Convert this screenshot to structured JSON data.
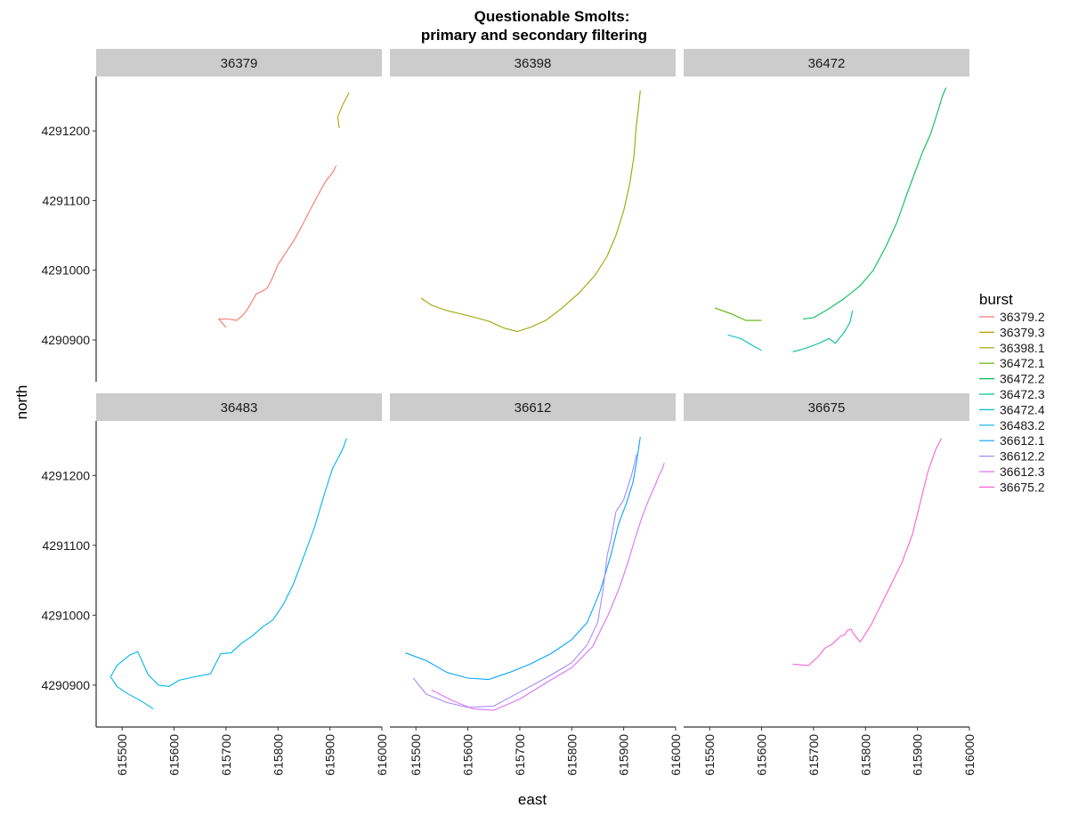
{
  "chart_data": {
    "type": "line",
    "title_lines": [
      "Questionable Smolts:",
      "primary and secondary filtering"
    ],
    "xlabel": "east",
    "ylabel": "north",
    "xlim": [
      615450,
      616000
    ],
    "ylim": [
      4290840,
      4291278
    ],
    "x_ticks": [
      615500,
      615600,
      615700,
      615800,
      615900,
      616000
    ],
    "y_ticks": [
      4290900,
      4291000,
      4291100,
      4291200
    ],
    "grid": false,
    "facet_by": "tag",
    "legend": {
      "title": "burst",
      "position": "right"
    },
    "panels": [
      {
        "label": "36379",
        "series": [
          {
            "name": "36379.2",
            "color": "#F8766D",
            "x": [
              615700,
              615686,
              615705,
              615720,
              615732,
              615742,
              615752,
              615758,
              615770,
              615780,
              615790,
              615800,
              615815,
              615830,
              615845,
              615862,
              615880,
              615892,
              615905,
              615912
            ],
            "y": [
              4290918,
              4290930,
              4290930,
              4290928,
              4290935,
              4290945,
              4290958,
              4290966,
              4290970,
              4290975,
              4290990,
              4291008,
              4291025,
              4291042,
              4291062,
              4291087,
              4291112,
              4291128,
              4291140,
              4291150
            ]
          },
          {
            "name": "36379.3",
            "color": "#C49A00",
            "x": [
              615918,
              615915,
              615925,
              615937
            ],
            "y": [
              4291204,
              4291220,
              4291238,
              4291255
            ]
          }
        ]
      },
      {
        "label": "36398",
        "series": [
          {
            "name": "36398.1",
            "color": "#99A800",
            "x": [
              615510,
              615530,
              615560,
              615600,
              615640,
              615670,
              615695,
              615720,
              615750,
              615780,
              615815,
              615845,
              615868,
              615885,
              615900,
              615912,
              615920,
              615924,
              615928,
              615932
            ],
            "y": [
              4290960,
              4290950,
              4290942,
              4290935,
              4290927,
              4290917,
              4290912,
              4290918,
              4290928,
              4290945,
              4290968,
              4290993,
              4291020,
              4291050,
              4291085,
              4291125,
              4291165,
              4291205,
              4291230,
              4291258
            ]
          }
        ]
      },
      {
        "label": "36472",
        "series": [
          {
            "name": "36472.1",
            "color": "#53B400",
            "x": [
              615510,
              615540,
              615570,
              615600
            ],
            "y": [
              4290946,
              4290938,
              4290928,
              4290928
            ]
          },
          {
            "name": "36472.2",
            "color": "#00BC56",
            "x": [
              615680,
              615700,
              615730,
              615760,
              615790,
              615815,
              615840,
              615860,
              615880,
              615895,
              615910,
              615925,
              615938,
              615948,
              615955
            ],
            "y": [
              4290930,
              4290932,
              4290945,
              4290960,
              4290978,
              4291000,
              4291035,
              4291068,
              4291110,
              4291140,
              4291170,
              4291195,
              4291225,
              4291250,
              4291262
            ]
          },
          {
            "name": "36472.3",
            "color": "#00C094",
            "x": [
              615660,
              615685,
              615710,
              615730,
              615742,
              615760,
              615770,
              615775
            ],
            "y": [
              4290883,
              4290888,
              4290895,
              4290902,
              4290895,
              4290912,
              4290925,
              4290942
            ]
          },
          {
            "name": "36472.4",
            "color": "#00BFC4",
            "x": [
              615535,
              615560,
              615580,
              615600
            ],
            "y": [
              4290907,
              4290902,
              4290893,
              4290885
            ]
          }
        ]
      },
      {
        "label": "36483",
        "series": [
          {
            "name": "36483.2",
            "color": "#00B6EB",
            "x": [
              615560,
              615535,
              615510,
              615490,
              615478,
              615490,
              615515,
              615530,
              615550,
              615570,
              615590,
              615610,
              615640,
              615670,
              615690,
              615710,
              615730,
              615750,
              615770,
              615790,
              615810,
              615830,
              615850,
              615870,
              615890,
              615905,
              615918,
              615926,
              615932
            ],
            "y": [
              4290866,
              4290878,
              4290888,
              4290898,
              4290912,
              4290928,
              4290943,
              4290948,
              4290915,
              4290900,
              4290898,
              4290907,
              4290912,
              4290916,
              4290945,
              4290946,
              4290960,
              4290970,
              4290983,
              4290993,
              4291015,
              4291045,
              4291085,
              4291125,
              4291175,
              4291210,
              4291228,
              4291240,
              4291253
            ]
          }
        ]
      },
      {
        "label": "36612",
        "series": [
          {
            "name": "36612.1",
            "color": "#06A4FF",
            "x": [
              615480,
              615520,
              615560,
              615600,
              615640,
              615680,
              615720,
              615760,
              615800,
              615830,
              615855,
              615875,
              615890,
              615905,
              615918,
              615926,
              615932
            ],
            "y": [
              4290946,
              4290935,
              4290918,
              4290910,
              4290908,
              4290918,
              4290930,
              4290945,
              4290965,
              4290990,
              4291035,
              4291085,
              4291130,
              4291160,
              4291190,
              4291225,
              4291255
            ]
          },
          {
            "name": "36612.2",
            "color": "#A58AFF",
            "x": [
              615495,
              615520,
              615560,
              615600,
              615650,
              615700,
              615750,
              615800,
              615830,
              615850,
              615860,
              615868,
              615876,
              615885,
              615900,
              615915,
              615925
            ],
            "y": [
              4290910,
              4290887,
              4290875,
              4290868,
              4290870,
              4290890,
              4290910,
              4290932,
              4290958,
              4290990,
              4291035,
              4291085,
              4291110,
              4291148,
              4291165,
              4291200,
              4291230
            ]
          },
          {
            "name": "36612.3",
            "color": "#DF70F8",
            "x": [
              615530,
              615570,
              615610,
              615650,
              615700,
              615750,
              615800,
              615840,
              615870,
              615892,
              615908,
              615922,
              615935,
              615948,
              615960,
              615968,
              615975,
              615978
            ],
            "y": [
              4290893,
              4290878,
              4290866,
              4290864,
              4290880,
              4290903,
              4290925,
              4290955,
              4291000,
              4291040,
              4291075,
              4291110,
              4291140,
              4291165,
              4291185,
              4291200,
              4291210,
              4291218
            ]
          }
        ]
      },
      {
        "label": "36675",
        "series": [
          {
            "name": "36675.2",
            "color": "#FB61D7",
            "x": [
              615660,
              615690,
              615708,
              615722,
              615735,
              615745,
              615752,
              615760,
              615765,
              615772,
              615778,
              615790,
              615810,
              615830,
              615850,
              615870,
              615890,
              615905,
              615920,
              615935,
              615946
            ],
            "y": [
              4290930,
              4290928,
              4290940,
              4290953,
              4290958,
              4290965,
              4290970,
              4290972,
              4290978,
              4290980,
              4290972,
              4290962,
              4290985,
              4291015,
              4291045,
              4291075,
              4291115,
              4291160,
              4291205,
              4291237,
              4291253
            ]
          }
        ]
      }
    ],
    "legend_entries": [
      {
        "name": "36379.2",
        "color": "#F8766D"
      },
      {
        "name": "36379.3",
        "color": "#C49A00"
      },
      {
        "name": "36398.1",
        "color": "#99A800"
      },
      {
        "name": "36472.1",
        "color": "#53B400"
      },
      {
        "name": "36472.2",
        "color": "#00BC56"
      },
      {
        "name": "36472.3",
        "color": "#00C094"
      },
      {
        "name": "36472.4",
        "color": "#00BFC4"
      },
      {
        "name": "36483.2",
        "color": "#00B6EB"
      },
      {
        "name": "36612.1",
        "color": "#06A4FF"
      },
      {
        "name": "36612.2",
        "color": "#A58AFF"
      },
      {
        "name": "36612.3",
        "color": "#DF70F8"
      },
      {
        "name": "36675.2",
        "color": "#FB61D7"
      }
    ],
    "strip_background": "#cccccc"
  }
}
